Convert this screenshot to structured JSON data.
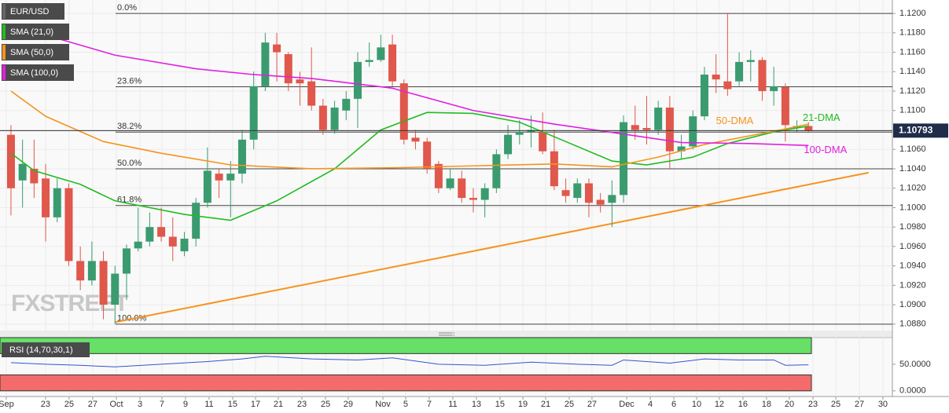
{
  "chart_data": {
    "type": "candlestick",
    "title": "EUR/USD",
    "xlim": [
      -0.95,
      76.26
    ],
    "ylim": [
      1.08734,
      1.12138
    ],
    "grid": true,
    "xticks": [
      {
        "value": -0.41,
        "label": "Sep"
      },
      {
        "value": 2.99,
        "label": "23"
      },
      {
        "value": 5.03,
        "label": "25"
      },
      {
        "value": 7.07,
        "label": "27"
      },
      {
        "value": 9.12,
        "label": "Oct"
      },
      {
        "value": 11.16,
        "label": "3"
      },
      {
        "value": 13.06,
        "label": "7"
      },
      {
        "value": 15.1,
        "label": "9"
      },
      {
        "value": 17.14,
        "label": "11"
      },
      {
        "value": 19.18,
        "label": "15"
      },
      {
        "value": 21.16,
        "label": "17"
      },
      {
        "value": 23.13,
        "label": "21"
      },
      {
        "value": 25.17,
        "label": "23"
      },
      {
        "value": 27.21,
        "label": "25"
      },
      {
        "value": 29.18,
        "label": "29"
      },
      {
        "value": 32.18,
        "label": "Nov"
      },
      {
        "value": 34.15,
        "label": "5"
      },
      {
        "value": 36.19,
        "label": "7"
      },
      {
        "value": 38.23,
        "label": "11"
      },
      {
        "value": 40.27,
        "label": "13"
      },
      {
        "value": 42.31,
        "label": "15"
      },
      {
        "value": 44.29,
        "label": "19"
      },
      {
        "value": 46.26,
        "label": "21"
      },
      {
        "value": 48.3,
        "label": "25"
      },
      {
        "value": 50.27,
        "label": "27"
      },
      {
        "value": 53.27,
        "label": "Dec"
      },
      {
        "value": 55.31,
        "label": "4"
      },
      {
        "value": 57.35,
        "label": "6"
      },
      {
        "value": 59.32,
        "label": "10"
      },
      {
        "value": 61.29,
        "label": "12"
      },
      {
        "value": 63.33,
        "label": "16"
      },
      {
        "value": 65.37,
        "label": "18"
      },
      {
        "value": 67.35,
        "label": "20"
      },
      {
        "value": 69.39,
        "label": "23"
      },
      {
        "value": 71.36,
        "label": "25"
      },
      {
        "value": 73.4,
        "label": "27"
      },
      {
        "value": 75.44,
        "label": "30"
      }
    ],
    "yticks": [
      {
        "value": 1.088,
        "label": "1.0880"
      },
      {
        "value": 1.09,
        "label": "1.0900"
      },
      {
        "value": 1.092,
        "label": "1.0920"
      },
      {
        "value": 1.094,
        "label": "1.0940"
      },
      {
        "value": 1.096,
        "label": "1.0960"
      },
      {
        "value": 1.098,
        "label": "1.0980"
      },
      {
        "value": 1.1,
        "label": "1.1000"
      },
      {
        "value": 1.102,
        "label": "1.1020"
      },
      {
        "value": 1.104,
        "label": "1.1040"
      },
      {
        "value": 1.106,
        "label": "1.1060"
      },
      {
        "value": 1.108,
        "label": "1.1080"
      },
      {
        "value": 1.11,
        "label": "1.1100"
      },
      {
        "value": 1.112,
        "label": "1.1120"
      },
      {
        "value": 1.114,
        "label": "1.1140"
      },
      {
        "value": 1.116,
        "label": "1.1160"
      },
      {
        "value": 1.118,
        "label": "1.1180"
      },
      {
        "value": 1.12,
        "label": "1.1200"
      }
    ],
    "up_color": "#3a9b6f",
    "down_color": "#e0574b",
    "open": [
      1.1075,
      1.1028,
      1.104,
      1.103,
      1.099,
      1.102,
      1.0945,
      1.0925,
      1.0945,
      1.09,
      1.0932,
      1.0958,
      1.0965,
      1.098,
      1.097,
      1.0955,
      1.0968,
      1.1005,
      1.1035,
      1.1028,
      1.1035,
      1.107,
      1.1125,
      1.1168,
      1.1158,
      1.1132,
      1.113,
      1.1105,
      1.108,
      1.11,
      1.1112,
      1.115,
      1.1152,
      1.1168,
      1.1128,
      1.1072,
      1.1068,
      1.1045,
      1.102,
      1.103,
      1.101,
      1.1008,
      1.102,
      1.1055,
      1.1075,
      1.1078,
      1.1078,
      1.1058,
      1.1018,
      1.101,
      1.1025,
      1.1008,
      1.1005,
      1.1013,
      1.1085,
      1.1082,
      1.108,
      1.1103,
      1.1058,
      1.1063,
      1.1094,
      1.1137,
      1.113,
      1.113,
      1.115,
      1.1152,
      1.112,
      1.1124,
      1.1082,
      1.1084
    ],
    "high": [
      1.1085,
      1.107,
      1.107,
      1.1045,
      1.103,
      1.1025,
      1.096,
      1.0965,
      1.0955,
      1.094,
      1.0962,
      1.1,
      1.0995,
      1.1,
      1.099,
      1.0975,
      1.101,
      1.1062,
      1.104,
      1.1048,
      1.108,
      1.114,
      1.118,
      1.118,
      1.116,
      1.114,
      1.1165,
      1.1112,
      1.111,
      1.112,
      1.116,
      1.117,
      1.1178,
      1.1178,
      1.1132,
      1.108,
      1.1072,
      1.1048,
      1.104,
      1.1038,
      1.102,
      1.1025,
      1.106,
      1.1085,
      1.109,
      1.1095,
      1.1098,
      1.108,
      1.103,
      1.103,
      1.103,
      1.1015,
      1.1028,
      1.1095,
      1.1105,
      1.1115,
      1.111,
      1.1115,
      1.1075,
      1.11,
      1.1145,
      1.1158,
      1.12,
      1.116,
      1.1162,
      1.1155,
      1.1145,
      1.1128,
      1.109,
      1.1088
    ],
    "low": [
      1.0992,
      1.1,
      1.101,
      1.0965,
      1.0985,
      1.094,
      1.0915,
      1.092,
      1.0885,
      1.088,
      1.0905,
      1.0955,
      1.096,
      1.0965,
      1.0945,
      1.095,
      1.096,
      1.1,
      1.101,
      1.099,
      1.1025,
      1.106,
      1.112,
      1.113,
      1.112,
      1.1105,
      1.11,
      1.1075,
      1.1076,
      1.109,
      1.1082,
      1.1145,
      1.115,
      1.1125,
      1.1065,
      1.106,
      1.1035,
      1.1015,
      1.1018,
      1.1005,
      1.0995,
      1.099,
      1.1015,
      1.105,
      1.1065,
      1.1062,
      1.1055,
      1.1018,
      1.1005,
      1.1005,
      1.099,
      1.0995,
      1.098,
      1.1005,
      1.107,
      1.1065,
      1.1075,
      1.104,
      1.105,
      1.106,
      1.109,
      1.1118,
      1.1115,
      1.1125,
      1.113,
      1.111,
      1.1105,
      1.1068,
      1.1078,
      1.1077
    ],
    "close": [
      1.102,
      1.1045,
      1.1025,
      1.099,
      1.102,
      1.0945,
      1.0925,
      1.0945,
      1.09,
      1.0932,
      1.0958,
      1.0965,
      1.098,
      1.097,
      1.096,
      1.0968,
      1.1005,
      1.1038,
      1.1028,
      1.1035,
      1.107,
      1.1125,
      1.117,
      1.116,
      1.1128,
      1.1128,
      1.1105,
      1.108,
      1.1103,
      1.1112,
      1.115,
      1.1152,
      1.1165,
      1.113,
      1.107,
      1.1068,
      1.104,
      1.102,
      1.103,
      1.101,
      1.1008,
      1.102,
      1.1055,
      1.1075,
      1.1078,
      1.108,
      1.1058,
      1.1022,
      1.1012,
      1.1025,
      1.1005,
      1.1003,
      1.1013,
      1.1088,
      1.108,
      1.108,
      1.1103,
      1.1058,
      1.1063,
      1.1094,
      1.1137,
      1.1132,
      1.1122,
      1.115,
      1.1152,
      1.112,
      1.1125,
      1.1085,
      1.1084,
      1.1079
    ],
    "series": [
      {
        "name": "SMA (21,0)",
        "color": "#22bb22",
        "x": [
          0,
          2,
          6,
          9,
          15,
          19,
          23,
          28,
          32,
          36,
          40,
          44,
          48,
          52,
          55,
          59,
          62,
          66,
          69
        ],
        "values": [
          1.1056,
          1.1038,
          1.1024,
          1.1007,
          1.0993,
          1.0987,
          1.1007,
          1.104,
          1.108,
          1.1098,
          1.1097,
          1.1088,
          1.1068,
          1.1048,
          1.1044,
          1.1052,
          1.1066,
          1.1078,
          1.1084
        ]
      },
      {
        "name": "SMA (50,0)",
        "color": "#f7931e",
        "x": [
          0,
          3,
          8,
          13,
          19,
          26,
          33,
          40,
          47,
          52,
          56,
          60,
          67,
          69
        ],
        "values": [
          1.112,
          1.1094,
          1.1068,
          1.1056,
          1.1044,
          1.104,
          1.1041,
          1.1043,
          1.1045,
          1.1042,
          1.1052,
          1.1065,
          1.1081,
          1.1086
        ]
      },
      {
        "name": "SMA (100,0)",
        "color": "#e020e0",
        "x": [
          0,
          9,
          16,
          21,
          26,
          33,
          40,
          47,
          54,
          58,
          64,
          69
        ],
        "values": [
          1.1188,
          1.1157,
          1.1143,
          1.1137,
          1.1133,
          1.1123,
          1.11,
          1.1086,
          1.1074,
          1.1067,
          1.1066,
          1.1064
        ]
      }
    ],
    "trendline": {
      "color": "#f7931e",
      "x": [
        9,
        74.2
      ],
      "values": [
        1.0882,
        1.1036
      ]
    },
    "fib_levels": [
      {
        "value": 1.12,
        "label": "0.0%"
      },
      {
        "value": 1.11245,
        "label": "23.6%"
      },
      {
        "value": 1.10778,
        "label": "38.2%"
      },
      {
        "value": 1.104,
        "label": "50.0%"
      },
      {
        "value": 1.10022,
        "label": "61.8%"
      },
      {
        "value": 1.088,
        "label": "100.0%"
      }
    ],
    "last_price": 1.10793,
    "annotations": [
      {
        "text": "50-DMA",
        "color": "#f7931e",
        "x": 61,
        "y": 1.1089
      },
      {
        "text": "21-DMA",
        "color": "#22bb22",
        "x": 68.5,
        "y": 1.1092
      },
      {
        "text": "100-DMA",
        "color": "#e020e0",
        "x": 68.6,
        "y": 1.1059
      }
    ],
    "watermark": "FXSTREET",
    "rsi": {
      "name": "RSI (14,70,30,1)",
      "color": "#3355cc",
      "ylim": [
        -10.6,
        100
      ],
      "yticks": [
        {
          "value": 0,
          "label": "0.0000"
        },
        {
          "value": 50,
          "label": "50.0000"
        }
      ],
      "overbought": 70,
      "oversold": 30,
      "x": [
        0,
        3,
        6,
        9,
        13,
        17,
        20,
        22,
        26,
        30,
        33,
        37,
        41,
        45,
        49,
        52,
        53,
        57,
        60,
        63,
        66,
        67,
        69
      ],
      "values": [
        53,
        50,
        48,
        45,
        50,
        55,
        60,
        65,
        60,
        58,
        62,
        50,
        48,
        54,
        50,
        48,
        58,
        52,
        60,
        58,
        58,
        48,
        49
      ]
    }
  }
}
